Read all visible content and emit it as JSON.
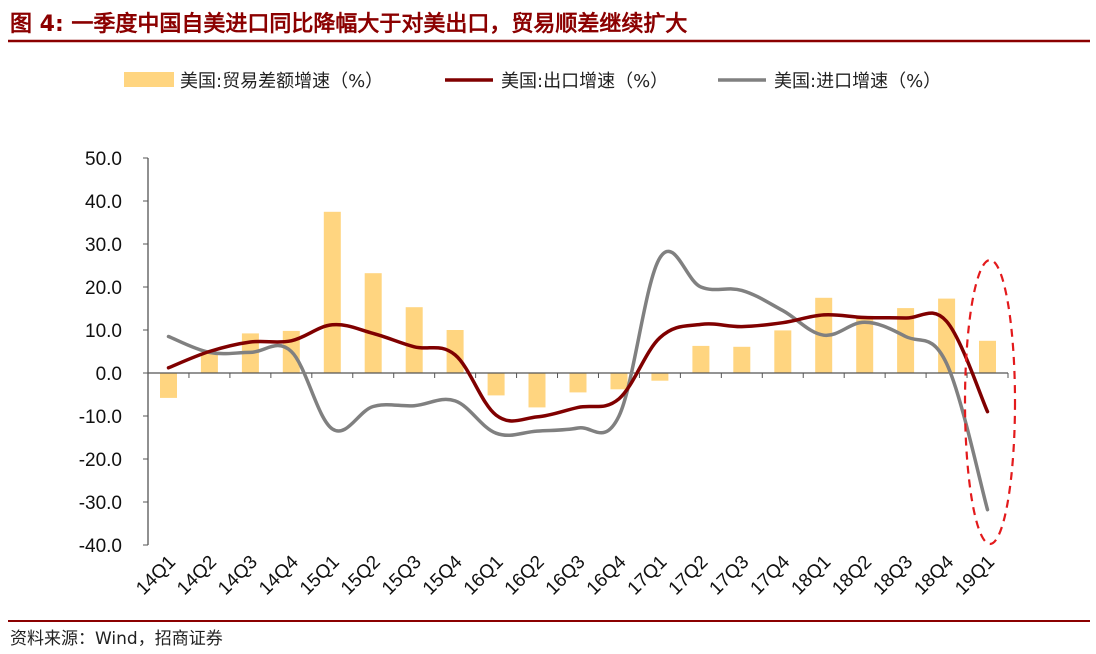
{
  "figure": {
    "title": "图 4:  一季度中国自美进口同比降幅大于对美出口，贸易顺差继续扩大",
    "source": "资料来源：Wind，招商证券",
    "colors": {
      "title": "#8B0000",
      "rule": "#8B0000",
      "highlight": "#E31A1C"
    }
  },
  "chart_data": {
    "type": "bar",
    "categories": [
      "14Q1",
      "14Q2",
      "14Q3",
      "14Q4",
      "15Q1",
      "15Q2",
      "15Q3",
      "15Q4",
      "16Q1",
      "16Q2",
      "16Q3",
      "16Q4",
      "17Q1",
      "17Q2",
      "17Q3",
      "17Q4",
      "18Q1",
      "18Q2",
      "18Q3",
      "18Q4",
      "19Q1"
    ],
    "ylim": [
      -40,
      50
    ],
    "yticks": [
      "50.0",
      "40.0",
      "30.0",
      "20.0",
      "10.0",
      "0.0",
      "-10.0",
      "-20.0",
      "-30.0",
      "-40.0"
    ],
    "ytick_values": [
      50,
      40,
      30,
      20,
      10,
      0,
      -10,
      -20,
      -30,
      -40
    ],
    "legend_position": "top",
    "grid": false,
    "series": [
      {
        "name": "美国:贸易差额增速（%）",
        "type": "bar",
        "color": "#FFD580",
        "values": [
          -5.8,
          4.5,
          9.2,
          9.8,
          37.5,
          23.2,
          15.3,
          10.0,
          -5.2,
          -8.0,
          -4.5,
          -3.8,
          -1.8,
          6.3,
          6.1,
          9.9,
          17.5,
          12.9,
          15.1,
          17.3,
          7.5
        ]
      },
      {
        "name": "美国:出口增速（%）",
        "type": "line",
        "color": "#800000",
        "values": [
          1.2,
          5.0,
          7.2,
          7.5,
          11.2,
          9.2,
          6.1,
          4.2,
          -9.8,
          -10.2,
          -8.0,
          -6.0,
          8.2,
          11.3,
          10.8,
          11.7,
          13.5,
          12.9,
          12.8,
          12.0,
          -9.0
        ]
      },
      {
        "name": "美国:进口增速（%）",
        "type": "line",
        "color": "#808080",
        "values": [
          8.5,
          4.8,
          4.8,
          5.0,
          -13.0,
          -7.8,
          -7.6,
          -6.5,
          -14.0,
          -13.5,
          -12.8,
          -10.0,
          26.8,
          20.0,
          19.2,
          14.5,
          8.8,
          11.8,
          8.5,
          2.2,
          -31.8
        ]
      }
    ]
  }
}
